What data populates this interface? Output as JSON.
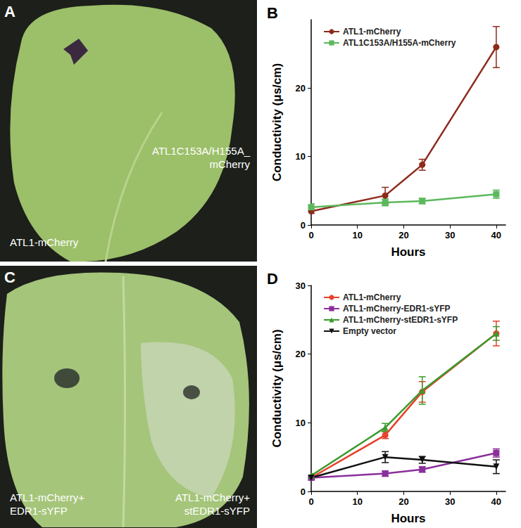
{
  "chart_data": [
    {
      "type": "line",
      "title": "B",
      "x": [
        0,
        16,
        24,
        40
      ],
      "xlim": [
        0,
        42
      ],
      "xticks": [
        0,
        10,
        20,
        30,
        40
      ],
      "ylim": [
        0,
        30
      ],
      "yticks": [
        0,
        10,
        20
      ],
      "x_label": "Hours",
      "y_label": "Conductivity (μs/cm)",
      "grid": false,
      "legend": "top-left",
      "series": [
        {
          "name": "ATL1-mCherry",
          "color": "#8e2a1c",
          "marker": "circle",
          "values": [
            2.0,
            4.3,
            8.8,
            26.0
          ],
          "errors": [
            0.3,
            1.2,
            0.8,
            3.0
          ]
        },
        {
          "name": "ATL1C153A/H155A-mCherry",
          "color": "#5cb85c",
          "marker": "square",
          "values": [
            2.6,
            3.3,
            3.5,
            4.5
          ],
          "errors": [
            0.5,
            0.5,
            0.4,
            0.6
          ]
        }
      ]
    },
    {
      "type": "line",
      "title": "D",
      "x": [
        0,
        16,
        24,
        40
      ],
      "xlim": [
        0,
        42
      ],
      "xticks": [
        0,
        10,
        20,
        30,
        40
      ],
      "ylim": [
        0,
        30
      ],
      "yticks": [
        0,
        10,
        20,
        30
      ],
      "x_label": "Hours",
      "y_label": "Conductivity (μs/cm)",
      "grid": false,
      "legend": "top-left",
      "series": [
        {
          "name": "ATL1-mCherry",
          "color": "#e8412c",
          "marker": "circle",
          "values": [
            2.0,
            8.2,
            14.5,
            23.0
          ],
          "errors": [
            0.3,
            0.5,
            1.5,
            1.8
          ]
        },
        {
          "name": "ATL1-mCherry-EDR1-sYFP",
          "color": "#8b2f9b",
          "marker": "square",
          "values": [
            2.0,
            2.6,
            3.2,
            5.6
          ],
          "errors": [
            0.2,
            0.4,
            0.4,
            0.6
          ]
        },
        {
          "name": "ATL1-mCherry-stEDR1-sYFP",
          "color": "#3a9a2a",
          "marker": "triangle",
          "values": [
            2.3,
            9.3,
            14.7,
            23.0
          ],
          "errors": [
            0.3,
            0.6,
            2.0,
            1.0
          ]
        },
        {
          "name": "Empty vector",
          "color": "#111111",
          "marker": "triangle-down",
          "values": [
            2.0,
            5.0,
            4.6,
            3.6
          ],
          "errors": [
            0.3,
            0.8,
            0.5,
            1.0
          ]
        }
      ]
    }
  ],
  "photos": [
    {
      "title": "A",
      "labels": [
        [
          "ATL1-mCherry"
        ],
        [
          "ATL1C153A/H155A_",
          "mCherry"
        ]
      ]
    },
    {
      "title": "C",
      "labels": [
        [
          "ATL1-mCherry+",
          "EDR1-sYFP"
        ],
        [
          "ATL1-mCherry+",
          "stEDR1-sYFP"
        ]
      ]
    }
  ]
}
